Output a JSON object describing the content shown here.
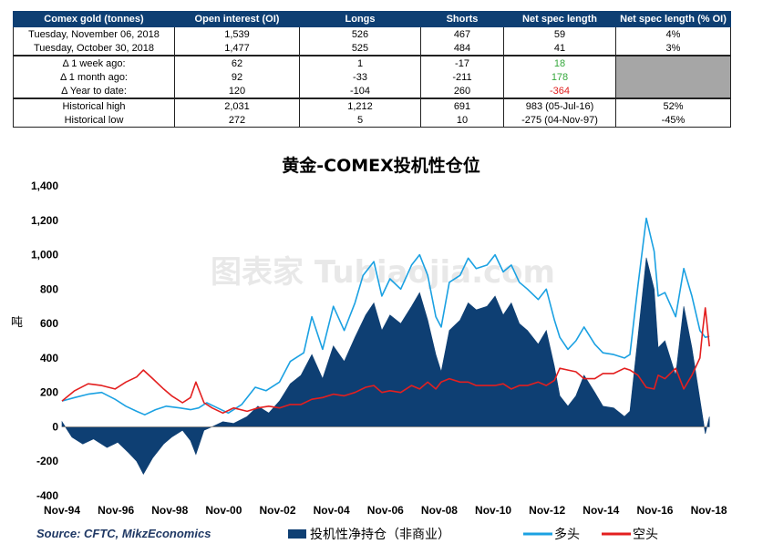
{
  "table": {
    "headers": [
      "Comex gold (tonnes)",
      "Open interest (OI)",
      "Longs",
      "Shorts",
      "Net spec length",
      "Net spec length (% OI)"
    ],
    "rows": [
      [
        "Tuesday, November 06, 2018",
        "1,539",
        "526",
        "467",
        "59",
        "4%"
      ],
      [
        "Tuesday, October 30, 2018",
        "1,477",
        "525",
        "484",
        "41",
        "3%"
      ],
      [
        "Δ 1 week ago:",
        "62",
        "1",
        "-17",
        "18",
        ""
      ],
      [
        "Δ 1 month ago:",
        "92",
        "-33",
        "-211",
        "178",
        ""
      ],
      [
        "Δ Year to date:",
        "120",
        "-104",
        "260",
        "-364",
        ""
      ],
      [
        "Historical high",
        "2,031",
        "1,212",
        "691",
        "983  (05-Jul-16)",
        "52%"
      ],
      [
        "Historical low",
        "272",
        "5",
        "10",
        "-275  (04-Nov-97)",
        "-45%"
      ]
    ]
  },
  "colors": {
    "header_bg": "#0e3f73",
    "net_bar": "#0e3f73",
    "long_line": "#1ba1e2",
    "short_line": "#e31f1f",
    "positive_text": "#35a83c",
    "negative_text": "#e02020",
    "gray_cell": "#a6a6a6"
  },
  "chart_data": {
    "type": "area",
    "title": "黄金-COMEX投机性仓位",
    "ylabel": "吨",
    "xlabel": "",
    "ylim": [
      -400,
      1400
    ],
    "yticks": [
      1400,
      1200,
      1000,
      800,
      600,
      400,
      200,
      0,
      -200,
      -400
    ],
    "ytick_labels": [
      "1,400",
      "1,200",
      "1,000",
      "800",
      "600",
      "400",
      "200",
      "0",
      "-200",
      "-400"
    ],
    "xlim": [
      1994.83,
      2019.25
    ],
    "xticks": [
      1994.83,
      1996.83,
      1998.83,
      2000.83,
      2002.83,
      2004.83,
      2006.83,
      2008.83,
      2010.83,
      2012.83,
      2014.83,
      2016.83,
      2018.83
    ],
    "xtick_labels": [
      "Nov-94",
      "Nov-96",
      "Nov-98",
      "Nov-00",
      "Nov-02",
      "Nov-04",
      "Nov-06",
      "Nov-08",
      "Nov-10",
      "Nov-12",
      "Nov-14",
      "Nov-16",
      "Nov-18"
    ],
    "grid": false,
    "legend_position": "bottom",
    "source": "Source: CFTC, MikzEconomics",
    "watermark": "图表家 Tubiaojia.com",
    "series": [
      {
        "name": "投机性净持仓（非商业）",
        "type": "area",
        "points": [
          [
            1994.83,
            30
          ],
          [
            1995.2,
            -60
          ],
          [
            1995.6,
            -100
          ],
          [
            1996.0,
            -70
          ],
          [
            1996.5,
            -120
          ],
          [
            1996.9,
            -90
          ],
          [
            1997.3,
            -150
          ],
          [
            1997.6,
            -200
          ],
          [
            1997.85,
            -275
          ],
          [
            1998.2,
            -180
          ],
          [
            1998.6,
            -100
          ],
          [
            1998.9,
            -60
          ],
          [
            1999.3,
            -20
          ],
          [
            1999.6,
            -80
          ],
          [
            1999.8,
            -160
          ],
          [
            2000.1,
            -20
          ],
          [
            2000.4,
            0
          ],
          [
            2000.8,
            30
          ],
          [
            2001.2,
            20
          ],
          [
            2001.7,
            60
          ],
          [
            2002.1,
            120
          ],
          [
            2002.5,
            80
          ],
          [
            2002.9,
            150
          ],
          [
            2003.3,
            250
          ],
          [
            2003.7,
            300
          ],
          [
            2004.1,
            420
          ],
          [
            2004.5,
            280
          ],
          [
            2004.9,
            470
          ],
          [
            2005.3,
            380
          ],
          [
            2005.7,
            520
          ],
          [
            2006.1,
            650
          ],
          [
            2006.4,
            720
          ],
          [
            2006.7,
            560
          ],
          [
            2007.0,
            650
          ],
          [
            2007.4,
            600
          ],
          [
            2007.8,
            700
          ],
          [
            2008.1,
            780
          ],
          [
            2008.4,
            620
          ],
          [
            2008.7,
            420
          ],
          [
            2008.9,
            320
          ],
          [
            2009.2,
            560
          ],
          [
            2009.6,
            620
          ],
          [
            2009.9,
            720
          ],
          [
            2010.2,
            680
          ],
          [
            2010.6,
            700
          ],
          [
            2010.9,
            760
          ],
          [
            2011.2,
            650
          ],
          [
            2011.5,
            720
          ],
          [
            2011.8,
            600
          ],
          [
            2012.1,
            560
          ],
          [
            2012.5,
            480
          ],
          [
            2012.8,
            560
          ],
          [
            2013.1,
            350
          ],
          [
            2013.3,
            180
          ],
          [
            2013.6,
            120
          ],
          [
            2013.9,
            180
          ],
          [
            2014.2,
            300
          ],
          [
            2014.6,
            200
          ],
          [
            2014.9,
            120
          ],
          [
            2015.3,
            110
          ],
          [
            2015.7,
            60
          ],
          [
            2015.9,
            90
          ],
          [
            2016.2,
            520
          ],
          [
            2016.51,
            983
          ],
          [
            2016.8,
            800
          ],
          [
            2016.95,
            460
          ],
          [
            2017.2,
            500
          ],
          [
            2017.6,
            300
          ],
          [
            2017.9,
            700
          ],
          [
            2018.2,
            460
          ],
          [
            2018.5,
            160
          ],
          [
            2018.7,
            -40
          ],
          [
            2018.85,
            59
          ]
        ]
      },
      {
        "name": "多头",
        "type": "line",
        "points": [
          [
            1994.83,
            150
          ],
          [
            1995.3,
            170
          ],
          [
            1995.8,
            190
          ],
          [
            1996.3,
            200
          ],
          [
            1996.8,
            160
          ],
          [
            1997.2,
            120
          ],
          [
            1997.6,
            90
          ],
          [
            1997.9,
            70
          ],
          [
            1998.3,
            100
          ],
          [
            1998.7,
            120
          ],
          [
            1999.2,
            110
          ],
          [
            1999.6,
            100
          ],
          [
            1999.9,
            110
          ],
          [
            2000.2,
            140
          ],
          [
            2000.6,
            110
          ],
          [
            2001.0,
            80
          ],
          [
            2001.5,
            130
          ],
          [
            2002.0,
            230
          ],
          [
            2002.4,
            210
          ],
          [
            2002.9,
            260
          ],
          [
            2003.3,
            380
          ],
          [
            2003.8,
            430
          ],
          [
            2004.1,
            640
          ],
          [
            2004.5,
            450
          ],
          [
            2004.9,
            700
          ],
          [
            2005.3,
            560
          ],
          [
            2005.7,
            720
          ],
          [
            2006.0,
            880
          ],
          [
            2006.4,
            960
          ],
          [
            2006.7,
            760
          ],
          [
            2007.0,
            860
          ],
          [
            2007.4,
            800
          ],
          [
            2007.8,
            940
          ],
          [
            2008.1,
            1000
          ],
          [
            2008.4,
            880
          ],
          [
            2008.7,
            640
          ],
          [
            2008.9,
            580
          ],
          [
            2009.2,
            840
          ],
          [
            2009.6,
            880
          ],
          [
            2009.9,
            980
          ],
          [
            2010.2,
            920
          ],
          [
            2010.6,
            940
          ],
          [
            2010.9,
            1000
          ],
          [
            2011.2,
            900
          ],
          [
            2011.5,
            940
          ],
          [
            2011.8,
            840
          ],
          [
            2012.1,
            800
          ],
          [
            2012.5,
            740
          ],
          [
            2012.8,
            800
          ],
          [
            2013.1,
            620
          ],
          [
            2013.3,
            520
          ],
          [
            2013.6,
            450
          ],
          [
            2013.9,
            500
          ],
          [
            2014.2,
            580
          ],
          [
            2014.6,
            480
          ],
          [
            2014.9,
            430
          ],
          [
            2015.3,
            420
          ],
          [
            2015.7,
            400
          ],
          [
            2015.9,
            420
          ],
          [
            2016.2,
            820
          ],
          [
            2016.51,
            1212
          ],
          [
            2016.8,
            1020
          ],
          [
            2016.95,
            760
          ],
          [
            2017.2,
            780
          ],
          [
            2017.6,
            640
          ],
          [
            2017.9,
            920
          ],
          [
            2018.2,
            760
          ],
          [
            2018.5,
            560
          ],
          [
            2018.7,
            520
          ],
          [
            2018.85,
            526
          ]
        ]
      },
      {
        "name": "空头",
        "type": "line",
        "points": [
          [
            1994.83,
            150
          ],
          [
            1995.3,
            210
          ],
          [
            1995.8,
            250
          ],
          [
            1996.3,
            240
          ],
          [
            1996.8,
            220
          ],
          [
            1997.2,
            260
          ],
          [
            1997.6,
            290
          ],
          [
            1997.85,
            330
          ],
          [
            1998.2,
            280
          ],
          [
            1998.6,
            220
          ],
          [
            1998.9,
            180
          ],
          [
            1999.3,
            140
          ],
          [
            1999.6,
            170
          ],
          [
            1999.8,
            260
          ],
          [
            2000.1,
            140
          ],
          [
            2000.4,
            110
          ],
          [
            2000.8,
            80
          ],
          [
            2001.2,
            110
          ],
          [
            2001.7,
            90
          ],
          [
            2002.1,
            110
          ],
          [
            2002.5,
            120
          ],
          [
            2002.9,
            110
          ],
          [
            2003.3,
            130
          ],
          [
            2003.7,
            130
          ],
          [
            2004.1,
            160
          ],
          [
            2004.5,
            170
          ],
          [
            2004.9,
            190
          ],
          [
            2005.3,
            180
          ],
          [
            2005.7,
            200
          ],
          [
            2006.1,
            230
          ],
          [
            2006.4,
            240
          ],
          [
            2006.7,
            200
          ],
          [
            2007.0,
            210
          ],
          [
            2007.4,
            200
          ],
          [
            2007.8,
            240
          ],
          [
            2008.1,
            220
          ],
          [
            2008.4,
            260
          ],
          [
            2008.7,
            220
          ],
          [
            2008.9,
            260
          ],
          [
            2009.2,
            280
          ],
          [
            2009.6,
            260
          ],
          [
            2009.9,
            260
          ],
          [
            2010.2,
            240
          ],
          [
            2010.6,
            240
          ],
          [
            2010.9,
            240
          ],
          [
            2011.2,
            250
          ],
          [
            2011.5,
            220
          ],
          [
            2011.8,
            240
          ],
          [
            2012.1,
            240
          ],
          [
            2012.5,
            260
          ],
          [
            2012.8,
            240
          ],
          [
            2013.1,
            270
          ],
          [
            2013.3,
            340
          ],
          [
            2013.6,
            330
          ],
          [
            2013.9,
            320
          ],
          [
            2014.2,
            280
          ],
          [
            2014.6,
            280
          ],
          [
            2014.9,
            310
          ],
          [
            2015.3,
            310
          ],
          [
            2015.7,
            340
          ],
          [
            2015.9,
            330
          ],
          [
            2016.2,
            300
          ],
          [
            2016.51,
            229
          ],
          [
            2016.8,
            220
          ],
          [
            2016.95,
            300
          ],
          [
            2017.2,
            280
          ],
          [
            2017.6,
            340
          ],
          [
            2017.9,
            220
          ],
          [
            2018.2,
            300
          ],
          [
            2018.5,
            400
          ],
          [
            2018.6,
            560
          ],
          [
            2018.7,
            691
          ],
          [
            2018.85,
            467
          ]
        ]
      }
    ]
  }
}
